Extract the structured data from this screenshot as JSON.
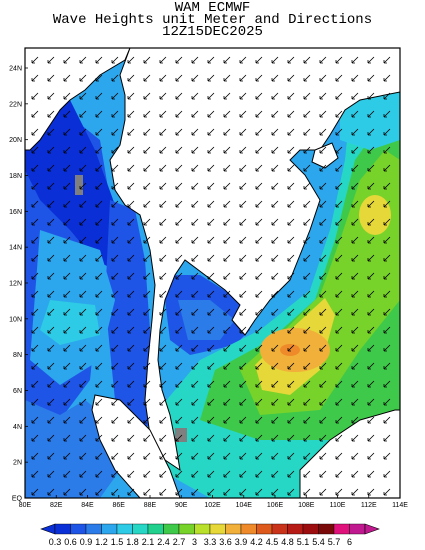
{
  "title": {
    "line1": "WAM ECMWF",
    "line2": "Wave Heights unit Meter and Directions",
    "line3": "12Z15DEC2025"
  },
  "map": {
    "lat_labels": [
      "24N",
      "22N",
      "20N",
      "18N",
      "16N",
      "14N",
      "12N",
      "10N",
      "8N",
      "6N",
      "4N",
      "2N",
      "EQ"
    ],
    "lon_labels": [
      "80E",
      "82E",
      "84E",
      "86E",
      "88E",
      "90E",
      "102E",
      "104E",
      "106E",
      "108E",
      "110E",
      "112E",
      "114E"
    ],
    "extent": {
      "lon": [
        80,
        114
      ],
      "lat": [
        0,
        24
      ]
    }
  },
  "colorbar": {
    "labels": [
      "0.3",
      "0.6",
      "0.9",
      "1.2",
      "1.5",
      "1.8",
      "2.1",
      "2.4",
      "2.7",
      "3",
      "3.3",
      "3.6",
      "3.9",
      "4.2",
      "4.5",
      "4.8",
      "5.1",
      "5.4",
      "5.7",
      "6"
    ],
    "colors": [
      "#0a2fd6",
      "#1f55e6",
      "#2b7be8",
      "#2ca6ec",
      "#2ecbe6",
      "#27d7c6",
      "#22d08d",
      "#3ec94a",
      "#77d22a",
      "#b9e02a",
      "#e6d838",
      "#f1b03a",
      "#ee8a2a",
      "#dd5a1c",
      "#c8331a",
      "#b61b16",
      "#9c0d10",
      "#7a0a0a",
      "#e0117a",
      "#c0198f"
    ]
  },
  "palette": {
    "land": "#ffffff",
    "outline": "#000000",
    "no_data": "#7f7f7f"
  }
}
